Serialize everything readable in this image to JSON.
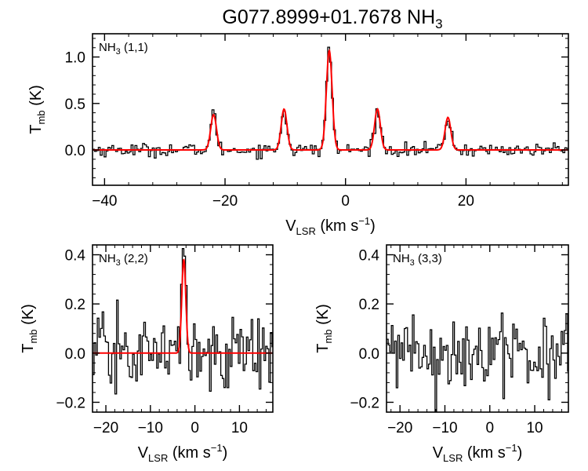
{
  "title": "G077.8999+01.7678 NH",
  "title_sub": "3",
  "chart_data": [
    {
      "type": "line",
      "panel": "top",
      "label": "NH",
      "label_sub": "3",
      "label_suffix": " (1,1)",
      "xlabel": "V",
      "xlabel_sub": "LSR",
      "xlabel_unit": " (km s",
      "xlabel_sup": "−1",
      "xlabel_close": ")",
      "ylabel": "T",
      "ylabel_sub": "mb",
      "ylabel_unit": " (K)",
      "xlim": [
        -42,
        37
      ],
      "ylim": [
        -0.38,
        1.25
      ],
      "xticks": [
        -40,
        -20,
        0,
        20
      ],
      "xtick_labels": [
        "−40",
        "−20",
        "0",
        "20"
      ],
      "yticks": [
        0.0,
        0.5,
        1.0
      ],
      "ytick_labels": [
        "0.0",
        "0.5",
        "1.0"
      ],
      "noise_rms": 0.035,
      "fit": {
        "color": "#ff0000",
        "components": [
          {
            "center": -21.9,
            "amplitude": 0.38,
            "sigma": 0.48
          },
          {
            "center": -10.2,
            "amplitude": 0.44,
            "sigma": 0.48
          },
          {
            "center": -2.7,
            "amplitude": 1.07,
            "sigma": 0.48
          },
          {
            "center": 5.3,
            "amplitude": 0.44,
            "sigma": 0.48
          },
          {
            "center": 17.0,
            "amplitude": 0.35,
            "sigma": 0.48
          }
        ]
      }
    },
    {
      "type": "line",
      "panel": "bottom-left",
      "label": "NH",
      "label_sub": "3",
      "label_suffix": " (2,2)",
      "xlabel": "V",
      "xlabel_sub": "LSR",
      "xlabel_unit": " (km s",
      "xlabel_sup": "−1",
      "xlabel_close": ")",
      "ylabel": "T",
      "ylabel_sub": "mb",
      "ylabel_unit": " (K)",
      "xlim": [
        -23,
        17.5
      ],
      "ylim": [
        -0.24,
        0.44
      ],
      "xticks": [
        -20,
        -10,
        0,
        10
      ],
      "xtick_labels": [
        "−20",
        "−10",
        "0",
        "10"
      ],
      "yticks": [
        -0.2,
        0.0,
        0.2,
        0.4
      ],
      "ytick_labels": [
        "−0.2",
        "0.0",
        "0.2",
        "0.4"
      ],
      "noise_rms": 0.075,
      "fit": {
        "color": "#ff0000",
        "components": [
          {
            "center": -2.5,
            "amplitude": 0.38,
            "sigma": 0.45
          }
        ]
      }
    },
    {
      "type": "line",
      "panel": "bottom-right",
      "label": "NH",
      "label_sub": "3",
      "label_suffix": " (3,3)",
      "xlabel": "V",
      "xlabel_sub": "LSR",
      "xlabel_unit": " (km s",
      "xlabel_sup": "−1",
      "xlabel_close": ")",
      "ylabel": "T",
      "ylabel_sub": "mb",
      "ylabel_unit": " (K)",
      "xlim": [
        -23,
        17.5
      ],
      "ylim": [
        -0.24,
        0.44
      ],
      "xticks": [
        -20,
        -10,
        0,
        10
      ],
      "xtick_labels": [
        "−20",
        "−10",
        "0",
        "10"
      ],
      "yticks": [
        -0.2,
        0.0,
        0.2,
        0.4
      ],
      "ytick_labels": [
        "−0.2",
        "0.0",
        "0.2",
        "0.4"
      ],
      "noise_rms": 0.07,
      "fit": null
    }
  ]
}
